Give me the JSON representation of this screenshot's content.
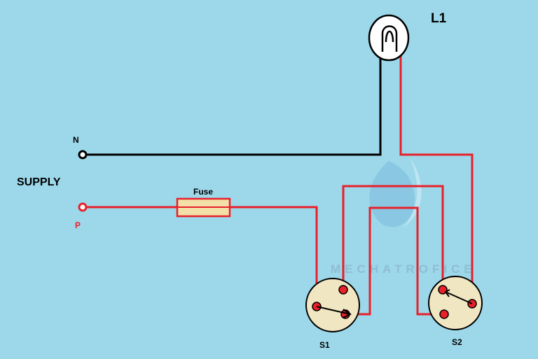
{
  "labels": {
    "lamp": "L1",
    "neutral": "N",
    "supply": "SUPPLY",
    "phase": "P",
    "fuse": "Fuse",
    "switch1": "S1",
    "switch2": "S2"
  },
  "watermark": "MECHATROFICE",
  "colors": {
    "background": "#9cd8ea",
    "phase_wire": "#e8202a",
    "neutral_wire": "#000000",
    "fuse_fill": "#f3dfa8",
    "switch_fill": "#f1e6c2",
    "terminal": "#e8202a"
  }
}
